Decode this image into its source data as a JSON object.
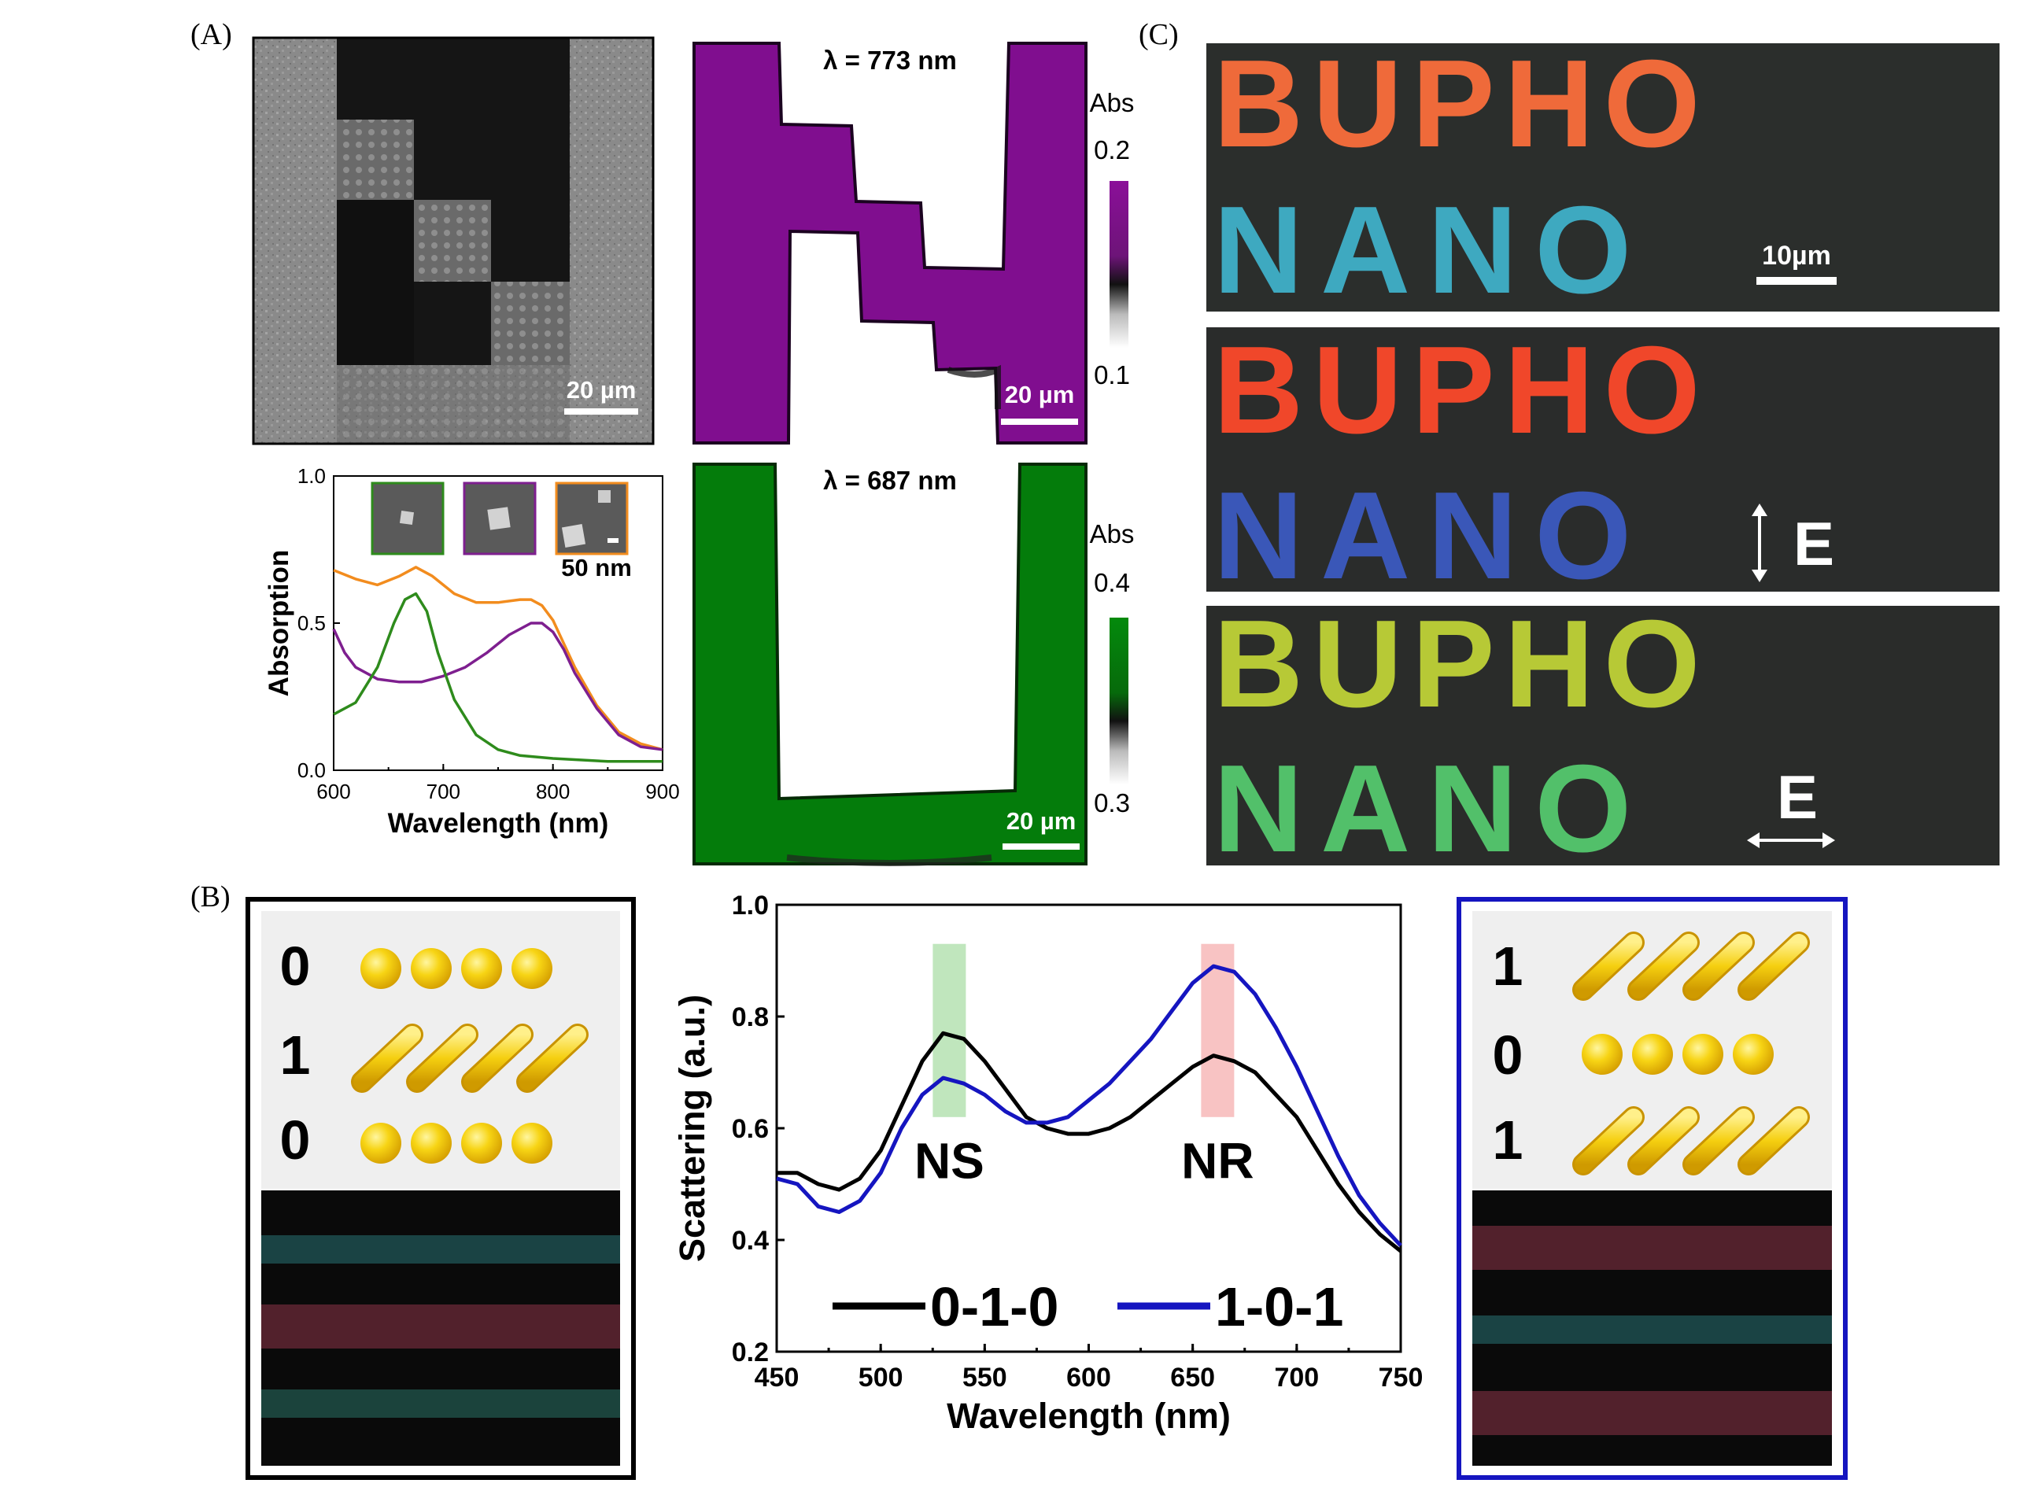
{
  "panel_labels": {
    "a": "(A)",
    "b": "(B)",
    "c": "(C)"
  },
  "sem": {
    "scalebar": "20 µm"
  },
  "map_top": {
    "title": "λ = 773 nm",
    "scalebar": "20 µm",
    "cb_label": "Abs",
    "cb_max": "0.2",
    "cb_min": "0.1",
    "color": "#800e8f"
  },
  "map_bottom": {
    "title": "λ = 687 nm",
    "scalebar": "20 µm",
    "cb_label": "Abs",
    "cb_max": "0.4",
    "cb_min": "0.3",
    "color": "#047c0b"
  },
  "inset_scalebar": "50 nm",
  "bupho": {
    "word1": "BUPHO",
    "word2": "NANO",
    "scalebar": "10µm",
    "e_label": "E"
  },
  "code_left": {
    "rows": [
      "0",
      "1",
      "0"
    ]
  },
  "code_right": {
    "rows": [
      "1",
      "0",
      "1"
    ]
  },
  "chart_data": [
    {
      "type": "line",
      "xlabel": "Wavelength (nm)",
      "ylabel": "Absorption",
      "xlim": [
        600,
        900
      ],
      "ylim": [
        0.0,
        1.0
      ],
      "xticks": [
        "600",
        "700",
        "800",
        "900"
      ],
      "yticks": [
        "0.0",
        "0.5",
        "1.0"
      ],
      "series": [
        {
          "color": "#f28c1e",
          "x": [
            600,
            620,
            640,
            660,
            675,
            690,
            710,
            730,
            750,
            770,
            780,
            790,
            800,
            810,
            820,
            840,
            860,
            880,
            900
          ],
          "y": [
            0.68,
            0.65,
            0.63,
            0.66,
            0.69,
            0.66,
            0.6,
            0.57,
            0.57,
            0.58,
            0.58,
            0.56,
            0.51,
            0.43,
            0.35,
            0.22,
            0.13,
            0.09,
            0.07
          ]
        },
        {
          "color": "#7e1f8f",
          "x": [
            600,
            610,
            620,
            640,
            660,
            680,
            700,
            720,
            740,
            760,
            780,
            790,
            800,
            810,
            820,
            840,
            860,
            880,
            900
          ],
          "y": [
            0.48,
            0.4,
            0.35,
            0.31,
            0.3,
            0.3,
            0.32,
            0.35,
            0.4,
            0.46,
            0.5,
            0.5,
            0.47,
            0.41,
            0.33,
            0.21,
            0.12,
            0.08,
            0.07
          ]
        },
        {
          "color": "#2e8b1c",
          "x": [
            600,
            620,
            640,
            655,
            665,
            675,
            685,
            695,
            710,
            730,
            750,
            770,
            800,
            850,
            900
          ],
          "y": [
            0.19,
            0.23,
            0.35,
            0.5,
            0.58,
            0.6,
            0.54,
            0.4,
            0.24,
            0.12,
            0.07,
            0.05,
            0.04,
            0.03,
            0.03
          ]
        }
      ]
    },
    {
      "type": "line",
      "xlabel": "Wavelength (nm)",
      "ylabel": "Scattering (a.u.)",
      "xlim": [
        450,
        750
      ],
      "ylim": [
        0.2,
        1.0
      ],
      "xticks": [
        "450",
        "500",
        "550",
        "600",
        "650",
        "700",
        "750"
      ],
      "yticks": [
        "0.2",
        "0.4",
        "0.6",
        "0.8",
        "1.0"
      ],
      "bands": [
        {
          "x": 533,
          "label": "NS",
          "color": "#9ed99a"
        },
        {
          "x": 662,
          "label": "NR",
          "color": "#f4a3a3"
        }
      ],
      "series": [
        {
          "name": "0-1-0",
          "color": "#000000",
          "x": [
            450,
            460,
            470,
            480,
            490,
            500,
            510,
            520,
            530,
            540,
            550,
            560,
            570,
            580,
            590,
            600,
            610,
            620,
            630,
            640,
            650,
            660,
            670,
            680,
            690,
            700,
            710,
            720,
            730,
            740,
            750
          ],
          "y": [
            0.52,
            0.52,
            0.5,
            0.49,
            0.51,
            0.56,
            0.64,
            0.72,
            0.77,
            0.76,
            0.72,
            0.67,
            0.62,
            0.6,
            0.59,
            0.59,
            0.6,
            0.62,
            0.65,
            0.68,
            0.71,
            0.73,
            0.72,
            0.7,
            0.66,
            0.62,
            0.56,
            0.5,
            0.45,
            0.41,
            0.38
          ]
        },
        {
          "name": "1-0-1",
          "color": "#1515c0",
          "x": [
            450,
            460,
            470,
            480,
            490,
            500,
            510,
            520,
            530,
            540,
            550,
            560,
            570,
            580,
            590,
            600,
            610,
            620,
            630,
            640,
            650,
            660,
            670,
            680,
            690,
            700,
            710,
            720,
            730,
            740,
            750
          ],
          "y": [
            0.51,
            0.5,
            0.46,
            0.45,
            0.47,
            0.52,
            0.6,
            0.66,
            0.69,
            0.68,
            0.66,
            0.63,
            0.61,
            0.61,
            0.62,
            0.65,
            0.68,
            0.72,
            0.76,
            0.81,
            0.86,
            0.89,
            0.88,
            0.84,
            0.78,
            0.71,
            0.63,
            0.55,
            0.48,
            0.43,
            0.39
          ]
        }
      ]
    }
  ]
}
